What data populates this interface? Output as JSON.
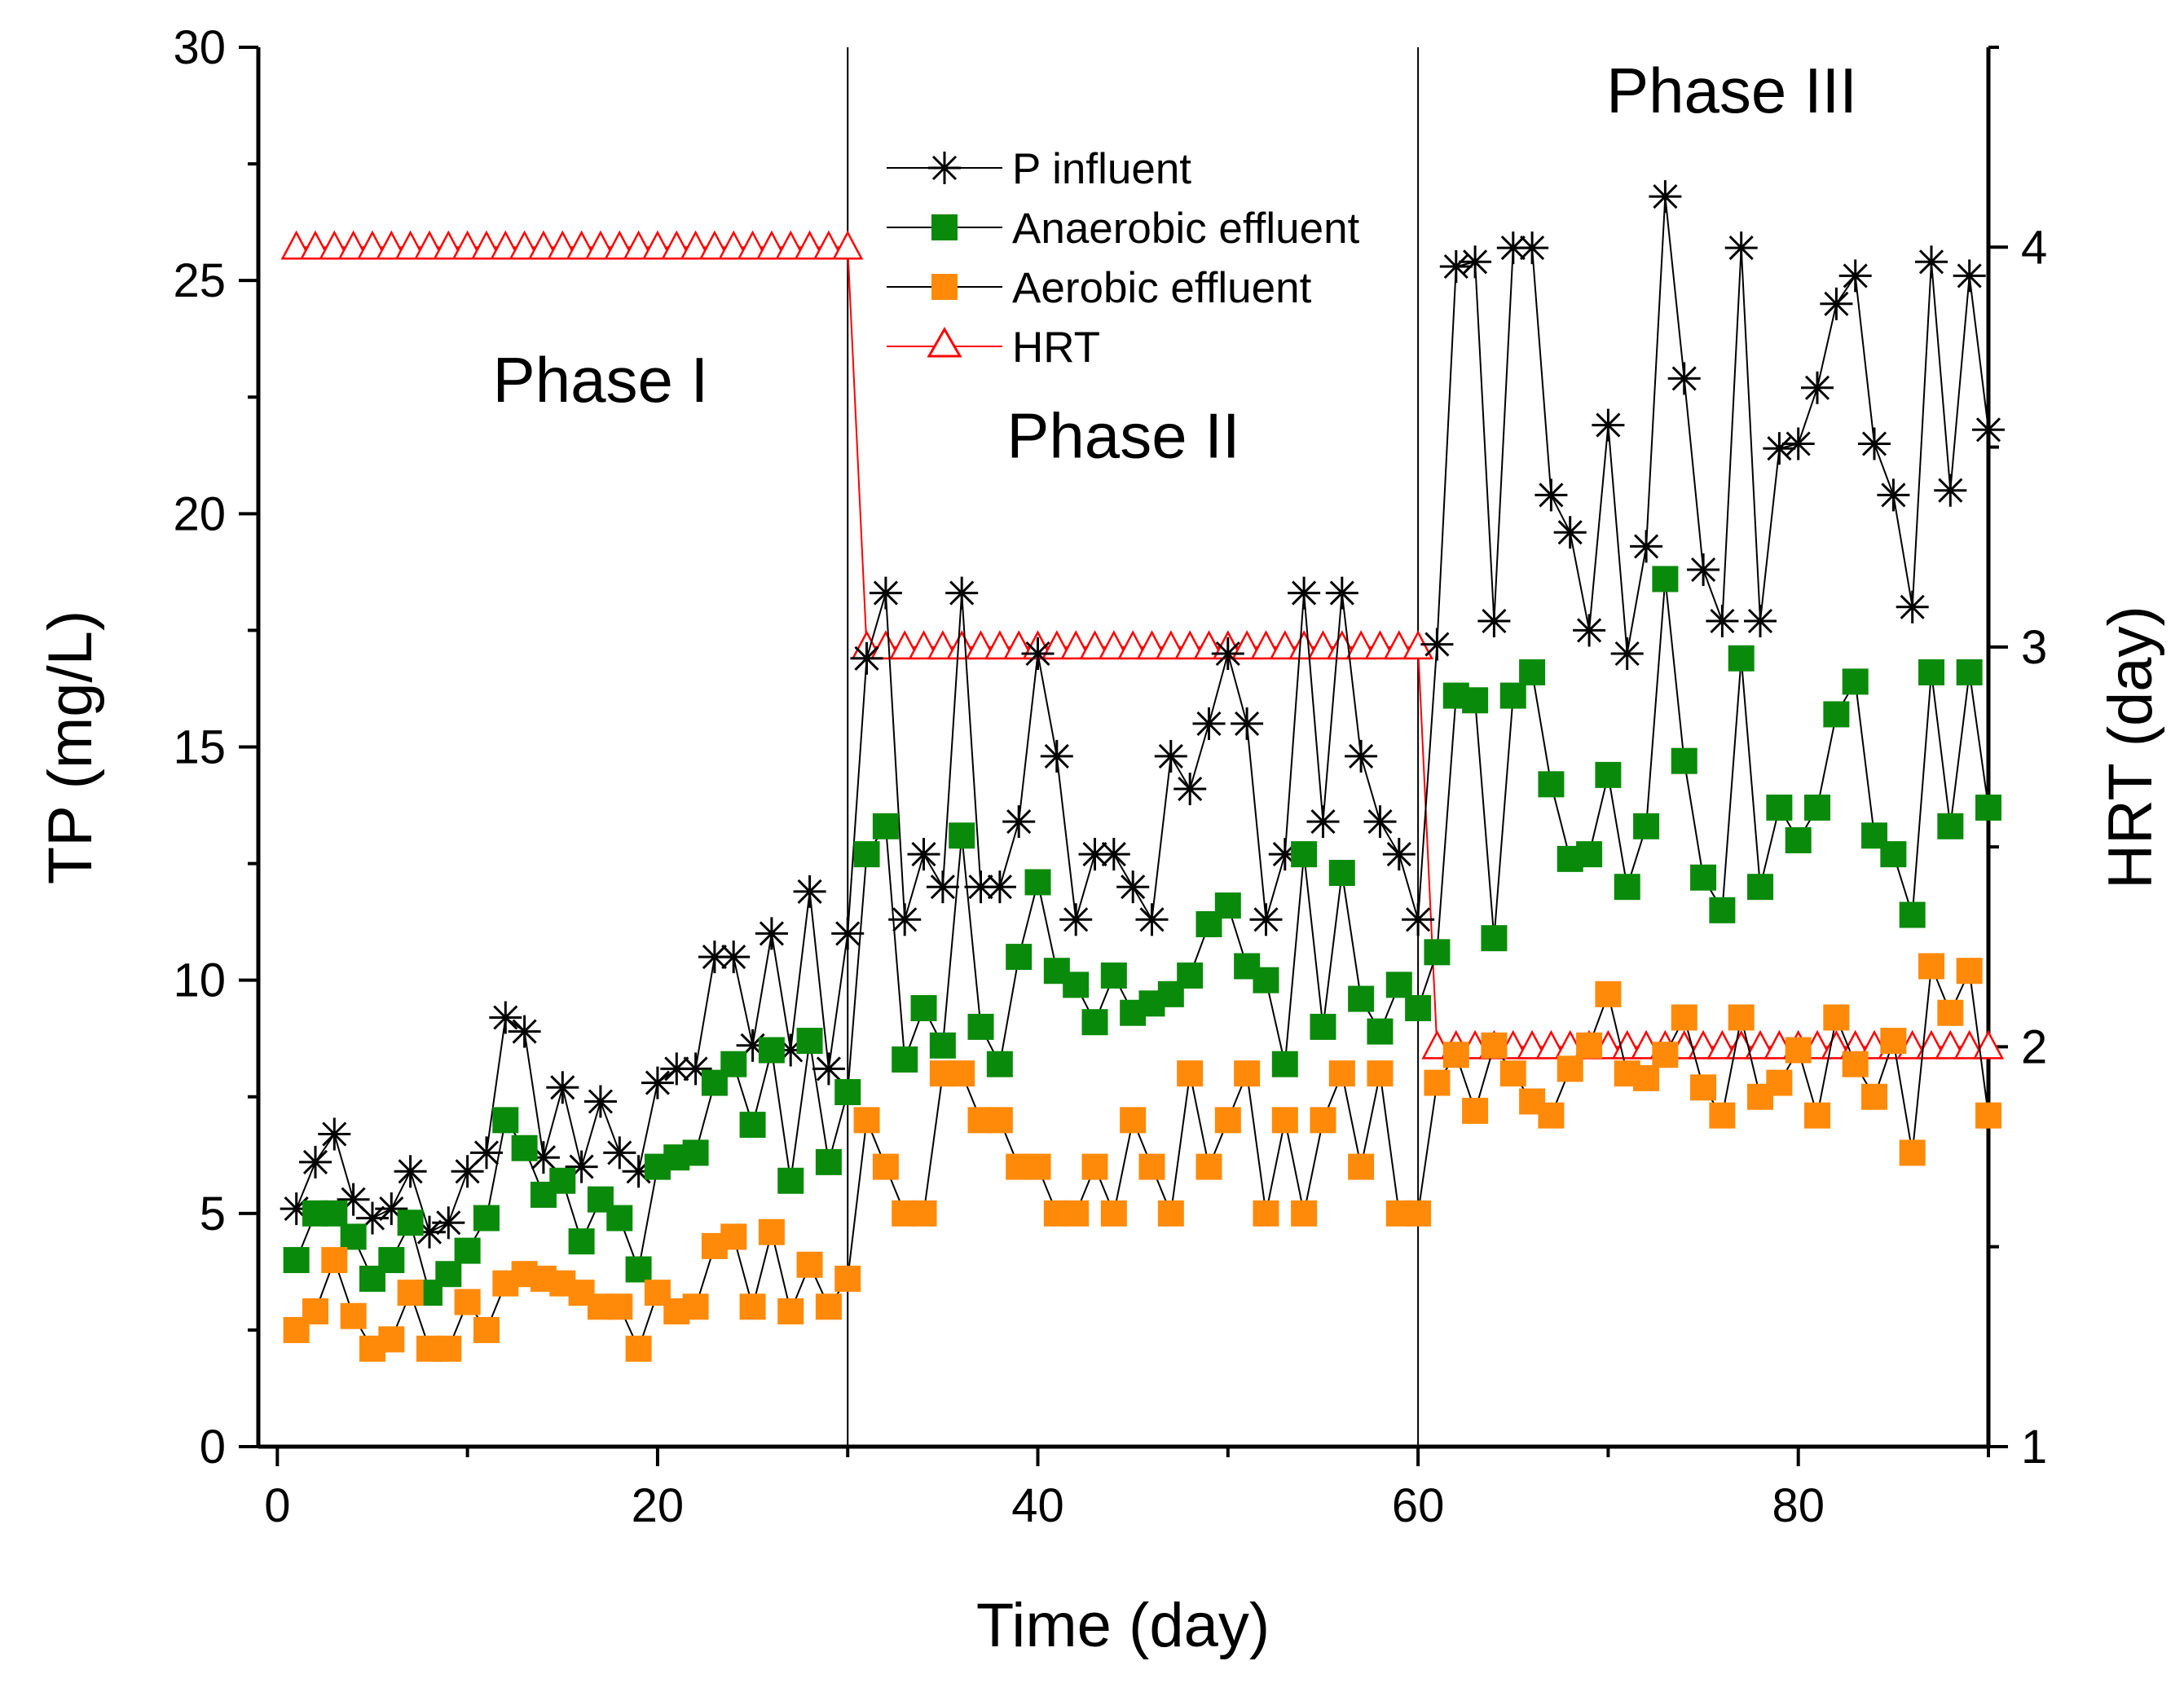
{
  "chart_data": {
    "type": "line",
    "xlabel": "Time (day)",
    "ylabel": "TP (mg/L)",
    "y2label": "HRT (day)",
    "xlim": [
      -1,
      90
    ],
    "ylim": [
      0,
      30
    ],
    "y2lim": [
      1,
      4.5
    ],
    "x_ticks": [
      0,
      20,
      40,
      60,
      80
    ],
    "y_ticks": [
      0,
      5,
      10,
      15,
      20,
      25,
      30
    ],
    "y2_ticks": [
      1,
      2,
      3,
      4
    ],
    "phase_dividers": [
      30,
      60
    ],
    "phase_labels": [
      {
        "text": "Phase I",
        "x": 17,
        "y": 22.4
      },
      {
        "text": "Phase II",
        "x": 44.5,
        "y": 21.2
      },
      {
        "text": "Phase III",
        "x": 76.5,
        "y": 28.6
      }
    ],
    "legend_position": "top-center",
    "series": [
      {
        "name": "P influent",
        "axis": "left",
        "color": "#000000",
        "marker": "asterisk",
        "x": [
          1,
          2,
          3,
          4,
          5,
          6,
          7,
          8,
          9,
          10,
          11,
          12,
          13,
          14,
          15,
          16,
          17,
          18,
          19,
          20,
          21,
          22,
          23,
          24,
          25,
          26,
          27,
          28,
          29,
          30,
          31,
          32,
          33,
          34,
          35,
          36,
          37,
          38,
          39,
          40,
          41,
          42,
          43,
          44,
          45,
          46,
          47,
          48,
          49,
          50,
          51,
          52,
          53,
          54,
          55,
          56,
          57,
          58,
          59,
          60,
          61,
          62,
          63,
          64,
          65,
          66,
          67,
          68,
          69,
          70,
          71,
          72,
          73,
          74,
          75,
          76,
          77,
          78,
          79,
          80,
          81,
          82,
          83,
          84,
          85,
          86,
          87,
          88,
          89,
          90
        ],
        "values": [
          5.1,
          6.1,
          6.7,
          5.3,
          4.9,
          5.1,
          5.9,
          4.6,
          4.8,
          5.9,
          6.3,
          9.2,
          8.9,
          6.2,
          7.7,
          6.0,
          7.4,
          6.3,
          5.9,
          7.8,
          8.1,
          8.1,
          10.5,
          10.5,
          8.6,
          11.0,
          8.5,
          11.9,
          8.1,
          11.0,
          16.9,
          18.3,
          11.3,
          12.7,
          12.0,
          18.3,
          12.0,
          12.0,
          13.4,
          17.0,
          14.8,
          11.3,
          12.7,
          12.7,
          12.0,
          11.3,
          14.8,
          14.1,
          15.5,
          17.0,
          15.5,
          11.3,
          12.7,
          18.3,
          13.4,
          18.3,
          14.8,
          13.4,
          12.7,
          11.3,
          17.2,
          25.3,
          25.4,
          17.7,
          25.7,
          25.7,
          20.4,
          19.6,
          17.5,
          21.9,
          17.0,
          19.3,
          26.8,
          22.9,
          18.8,
          17.7,
          25.7,
          17.7,
          21.4,
          21.5,
          22.7,
          24.5,
          25.1,
          21.5,
          20.4,
          18.0,
          25.4,
          20.5,
          25.1,
          21.8
        ]
      },
      {
        "name": "Anaerobic effluent",
        "axis": "left",
        "color": "#0a8a0a",
        "marker": "square",
        "x": [
          1,
          2,
          3,
          4,
          5,
          6,
          7,
          8,
          9,
          10,
          11,
          12,
          13,
          14,
          15,
          16,
          17,
          18,
          19,
          20,
          21,
          22,
          23,
          24,
          25,
          26,
          27,
          28,
          29,
          30,
          31,
          32,
          33,
          34,
          35,
          36,
          37,
          38,
          39,
          40,
          41,
          42,
          43,
          44,
          45,
          46,
          47,
          48,
          49,
          50,
          51,
          52,
          53,
          54,
          55,
          56,
          57,
          58,
          59,
          60,
          61,
          62,
          63,
          64,
          65,
          66,
          67,
          68,
          69,
          70,
          71,
          72,
          73,
          74,
          75,
          76,
          77,
          78,
          79,
          80,
          81,
          82,
          83,
          84,
          85,
          86,
          87,
          88,
          89,
          90
        ],
        "values": [
          4.0,
          5.0,
          5.0,
          4.5,
          3.6,
          4.0,
          4.8,
          3.3,
          3.7,
          4.2,
          4.9,
          7.0,
          6.4,
          5.4,
          5.7,
          4.4,
          5.3,
          4.9,
          3.8,
          6.0,
          6.2,
          6.3,
          7.8,
          8.2,
          6.9,
          8.5,
          5.7,
          8.7,
          6.1,
          7.6,
          12.7,
          13.3,
          8.3,
          9.4,
          8.6,
          13.1,
          9.0,
          8.2,
          10.5,
          12.1,
          10.2,
          9.9,
          9.1,
          10.1,
          9.3,
          9.5,
          9.7,
          10.1,
          11.2,
          11.6,
          10.3,
          10.0,
          8.2,
          12.7,
          9.0,
          12.3,
          9.6,
          8.9,
          9.9,
          9.4,
          10.6,
          16.1,
          16.0,
          10.9,
          16.1,
          16.6,
          14.2,
          12.6,
          12.7,
          14.4,
          12.0,
          13.3,
          18.6,
          14.7,
          12.2,
          11.5,
          16.9,
          12.0,
          13.7,
          13.0,
          13.7,
          15.7,
          16.4,
          13.1,
          12.7,
          11.4,
          16.6,
          13.3,
          16.6,
          13.7
        ]
      },
      {
        "name": "Aerobic effluent",
        "axis": "left",
        "color": "#ff8a0a",
        "marker": "square",
        "x": [
          1,
          2,
          3,
          4,
          5,
          6,
          7,
          8,
          9,
          10,
          11,
          12,
          13,
          14,
          15,
          16,
          17,
          18,
          19,
          20,
          21,
          22,
          23,
          24,
          25,
          26,
          27,
          28,
          29,
          30,
          31,
          32,
          33,
          34,
          35,
          36,
          37,
          38,
          39,
          40,
          41,
          42,
          43,
          44,
          45,
          46,
          47,
          48,
          49,
          50,
          51,
          52,
          53,
          54,
          55,
          56,
          57,
          58,
          59,
          60,
          61,
          62,
          63,
          64,
          65,
          66,
          67,
          68,
          69,
          70,
          71,
          72,
          73,
          74,
          75,
          76,
          77,
          78,
          79,
          80,
          81,
          82,
          83,
          84,
          85,
          86,
          87,
          88,
          89,
          90
        ],
        "values": [
          2.5,
          2.9,
          4.0,
          2.8,
          2.1,
          2.3,
          3.3,
          2.1,
          2.1,
          3.1,
          2.5,
          3.5,
          3.7,
          3.6,
          3.5,
          3.3,
          3.0,
          3.0,
          2.1,
          3.3,
          2.9,
          3.0,
          4.3,
          4.5,
          3.0,
          4.6,
          2.9,
          3.9,
          3.0,
          3.6,
          7.0,
          6.0,
          5.0,
          5.0,
          8.0,
          8.0,
          7.0,
          7.0,
          6.0,
          6.0,
          5.0,
          5.0,
          6.0,
          5.0,
          7.0,
          6.0,
          5.0,
          8.0,
          6.0,
          7.0,
          8.0,
          5.0,
          7.0,
          5.0,
          7.0,
          8.0,
          6.0,
          8.0,
          5.0,
          5.0,
          7.8,
          8.4,
          7.2,
          8.6,
          8.0,
          7.4,
          7.1,
          8.1,
          8.6,
          9.7,
          8.0,
          7.9,
          8.4,
          9.2,
          7.7,
          7.1,
          9.2,
          7.5,
          7.8,
          8.5,
          7.1,
          9.2,
          8.2,
          7.5,
          8.7,
          6.3,
          10.3,
          9.3,
          10.2,
          7.1
        ]
      },
      {
        "name": "HRT",
        "axis": "right",
        "color": "#ff0000",
        "marker": "triangle-open",
        "x": [
          1,
          2,
          3,
          4,
          5,
          6,
          7,
          8,
          9,
          10,
          11,
          12,
          13,
          14,
          15,
          16,
          17,
          18,
          19,
          20,
          21,
          22,
          23,
          24,
          25,
          26,
          27,
          28,
          29,
          30,
          31,
          32,
          33,
          34,
          35,
          36,
          37,
          38,
          39,
          40,
          41,
          42,
          43,
          44,
          45,
          46,
          47,
          48,
          49,
          50,
          51,
          52,
          53,
          54,
          55,
          56,
          57,
          58,
          59,
          60,
          61,
          62,
          63,
          64,
          65,
          66,
          67,
          68,
          69,
          70,
          71,
          72,
          73,
          74,
          75,
          76,
          77,
          78,
          79,
          80,
          81,
          82,
          83,
          84,
          85,
          86,
          87,
          88,
          89,
          90
        ],
        "values": [
          4,
          4,
          4,
          4,
          4,
          4,
          4,
          4,
          4,
          4,
          4,
          4,
          4,
          4,
          4,
          4,
          4,
          4,
          4,
          4,
          4,
          4,
          4,
          4,
          4,
          4,
          4,
          4,
          4,
          4,
          3,
          3,
          3,
          3,
          3,
          3,
          3,
          3,
          3,
          3,
          3,
          3,
          3,
          3,
          3,
          3,
          3,
          3,
          3,
          3,
          3,
          3,
          3,
          3,
          3,
          3,
          3,
          3,
          3,
          3,
          2,
          2,
          2,
          2,
          2,
          2,
          2,
          2,
          2,
          2,
          2,
          2,
          2,
          2,
          2,
          2,
          2,
          2,
          2,
          2,
          2,
          2,
          2,
          2,
          2,
          2,
          2,
          2,
          2,
          2
        ]
      }
    ]
  }
}
